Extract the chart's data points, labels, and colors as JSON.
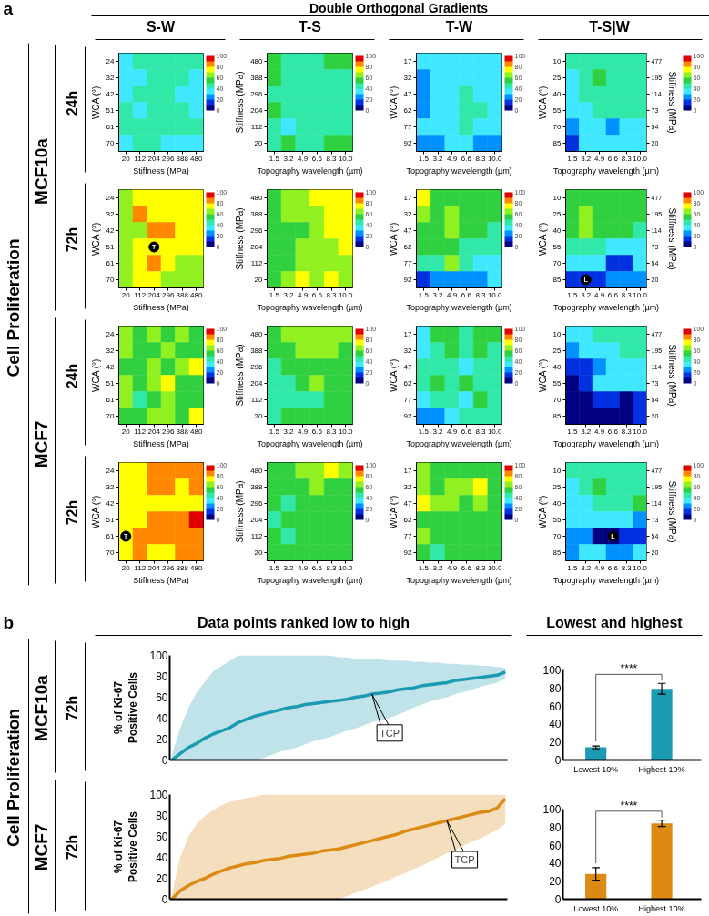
{
  "chart_data": [
    {
      "type": "heatmap",
      "title": "S-W",
      "annotations": [
        "a",
        "Double Orthogonal Gradients",
        "Cell Proliferation",
        "MCF10a",
        "24h"
      ],
      "categories": [
        "20",
        "112",
        "204",
        "296",
        "388",
        "480"
      ],
      "y_categories": [
        "24",
        "32",
        "42",
        "51",
        "61",
        "70"
      ],
      "xlabel": "Stiffness (MPa)",
      "ylabel": "WCA (°)",
      "clim": [
        0,
        100
      ],
      "cticks": [
        0,
        20,
        40,
        60,
        80,
        100
      ],
      "cells": [
        [
          35,
          45,
          45,
          45,
          45,
          45
        ],
        [
          35,
          35,
          45,
          45,
          45,
          35
        ],
        [
          35,
          45,
          45,
          45,
          35,
          35
        ],
        [
          45,
          35,
          45,
          45,
          45,
          35
        ],
        [
          45,
          45,
          45,
          45,
          45,
          45
        ],
        [
          35,
          45,
          45,
          35,
          35,
          35
        ]
      ]
    },
    {
      "type": "heatmap",
      "title": "T-S",
      "categories": [
        "1.5",
        "3.2",
        "4.9",
        "6.6",
        "8.3",
        "10.0"
      ],
      "y_categories": [
        "480",
        "388",
        "296",
        "204",
        "112",
        "20"
      ],
      "xlabel": "Topography wavelength (µm)",
      "ylabel": "Stiffness (MPa)",
      "clim": [
        0,
        100
      ],
      "cticks": [
        0,
        20,
        40,
        60,
        80,
        100
      ],
      "cells": [
        [
          55,
          45,
          45,
          45,
          55,
          55
        ],
        [
          55,
          45,
          45,
          45,
          45,
          45
        ],
        [
          45,
          45,
          45,
          45,
          45,
          45
        ],
        [
          55,
          45,
          45,
          45,
          45,
          45
        ],
        [
          45,
          35,
          45,
          45,
          45,
          45
        ],
        [
          45,
          55,
          45,
          45,
          55,
          55
        ]
      ]
    },
    {
      "type": "heatmap",
      "title": "T-W",
      "categories": [
        "1.5",
        "3.2",
        "4.9",
        "6.6",
        "8.3",
        "10.0"
      ],
      "y_categories": [
        "17",
        "32",
        "47",
        "62",
        "77",
        "92"
      ],
      "xlabel": "Topography wavelength (µm)",
      "ylabel": "WCA (°)",
      "clim": [
        0,
        100
      ],
      "cticks": [
        0,
        20,
        40,
        60,
        80,
        100
      ],
      "cells": [
        [
          35,
          35,
          35,
          35,
          35,
          35
        ],
        [
          25,
          35,
          35,
          35,
          35,
          35
        ],
        [
          25,
          35,
          35,
          45,
          35,
          35
        ],
        [
          25,
          35,
          35,
          45,
          45,
          35
        ],
        [
          35,
          35,
          35,
          45,
          35,
          35
        ],
        [
          25,
          25,
          35,
          35,
          25,
          25
        ]
      ]
    },
    {
      "type": "heatmap",
      "title": "T-S|W",
      "categories": [
        "1.5",
        "3.2",
        "4.9",
        "6.6",
        "8.3",
        "10.0"
      ],
      "y_categories": [
        "10",
        "25",
        "40",
        "55",
        "70",
        "85"
      ],
      "y2_categories": [
        "477",
        "195",
        "114",
        "73",
        "54",
        "20"
      ],
      "xlabel": "Topography wavelength (µm)",
      "ylabel": "WCA (°)",
      "y2label": "Stiffness (MPa)",
      "clim": [
        0,
        100
      ],
      "cticks": [
        0,
        20,
        40,
        60,
        80,
        100
      ],
      "cells": [
        [
          45,
          45,
          45,
          45,
          45,
          45
        ],
        [
          35,
          45,
          55,
          45,
          45,
          45
        ],
        [
          35,
          45,
          45,
          45,
          45,
          45
        ],
        [
          35,
          35,
          45,
          45,
          45,
          45
        ],
        [
          25,
          35,
          35,
          25,
          35,
          35
        ],
        [
          15,
          35,
          35,
          35,
          35,
          35
        ]
      ]
    },
    {
      "type": "heatmap",
      "annotations": [
        "72h",
        {
          "text": "T",
          "x": "204",
          "y": "51"
        }
      ],
      "categories": [
        "20",
        "112",
        "204",
        "296",
        "388",
        "480"
      ],
      "y_categories": [
        "24",
        "32",
        "42",
        "51",
        "61",
        "70"
      ],
      "xlabel": "Stiffness (MPa)",
      "ylabel": "WCA (°)",
      "clim": [
        0,
        100
      ],
      "cticks": [
        0,
        20,
        40,
        60,
        80,
        100
      ],
      "cells": [
        [
          65,
          75,
          75,
          75,
          75,
          75
        ],
        [
          65,
          85,
          75,
          75,
          75,
          75
        ],
        [
          65,
          65,
          85,
          85,
          75,
          75
        ],
        [
          65,
          75,
          75,
          75,
          75,
          75
        ],
        [
          65,
          75,
          85,
          75,
          65,
          65
        ],
        [
          65,
          75,
          75,
          65,
          65,
          65
        ]
      ]
    },
    {
      "type": "heatmap",
      "categories": [
        "1.5",
        "3.2",
        "4.9",
        "6.6",
        "8.3",
        "10.0"
      ],
      "y_categories": [
        "480",
        "388",
        "296",
        "204",
        "112",
        "20"
      ],
      "xlabel": "Topography wavelength (µm)",
      "ylabel": "Stiffness (MPa)",
      "clim": [
        0,
        100
      ],
      "cticks": [
        0,
        20,
        40,
        60,
        80,
        100
      ],
      "cells": [
        [
          55,
          65,
          65,
          75,
          75,
          75
        ],
        [
          55,
          65,
          65,
          65,
          75,
          75
        ],
        [
          55,
          55,
          55,
          65,
          75,
          75
        ],
        [
          55,
          55,
          65,
          65,
          65,
          75
        ],
        [
          55,
          55,
          65,
          65,
          65,
          65
        ],
        [
          55,
          65,
          75,
          65,
          75,
          65
        ]
      ]
    },
    {
      "type": "heatmap",
      "categories": [
        "1.5",
        "3.2",
        "4.9",
        "6.6",
        "8.3",
        "10.0"
      ],
      "y_categories": [
        "17",
        "32",
        "47",
        "62",
        "77",
        "92"
      ],
      "xlabel": "Topography wavelength (µm)",
      "ylabel": "WCA (°)",
      "clim": [
        0,
        100
      ],
      "cticks": [
        0,
        20,
        40,
        60,
        80,
        100
      ],
      "cells": [
        [
          75,
          55,
          55,
          55,
          55,
          55
        ],
        [
          65,
          55,
          65,
          55,
          55,
          55
        ],
        [
          55,
          55,
          65,
          55,
          55,
          45
        ],
        [
          55,
          55,
          55,
          45,
          45,
          45
        ],
        [
          45,
          45,
          65,
          45,
          35,
          35
        ],
        [
          15,
          25,
          25,
          25,
          25,
          35
        ]
      ]
    },
    {
      "type": "heatmap",
      "annotations": [
        {
          "text": "L",
          "x": "3.2",
          "y": "85"
        }
      ],
      "categories": [
        "1.5",
        "3.2",
        "4.9",
        "6.6",
        "8.3",
        "10.0"
      ],
      "y_categories": [
        "10",
        "25",
        "40",
        "55",
        "70",
        "85"
      ],
      "y2_categories": [
        "477",
        "195",
        "114",
        "73",
        "54",
        "20"
      ],
      "xlabel": "Topography wavelength (µm)",
      "ylabel": "WCA (°)",
      "y2label": "Stiffness (MPa)",
      "clim": [
        0,
        100
      ],
      "cticks": [
        0,
        20,
        40,
        60,
        80,
        100
      ],
      "cells": [
        [
          55,
          55,
          55,
          55,
          55,
          55
        ],
        [
          55,
          65,
          55,
          55,
          55,
          55
        ],
        [
          55,
          65,
          55,
          55,
          55,
          45
        ],
        [
          45,
          45,
          45,
          35,
          35,
          35
        ],
        [
          35,
          35,
          35,
          15,
          15,
          35
        ],
        [
          15,
          15,
          15,
          25,
          25,
          25
        ]
      ]
    },
    {
      "type": "heatmap",
      "annotations": [
        "MCF7",
        "24h"
      ],
      "categories": [
        "20",
        "112",
        "204",
        "296",
        "388",
        "480"
      ],
      "y_categories": [
        "24",
        "32",
        "42",
        "51",
        "61",
        "70"
      ],
      "xlabel": "Stiffness (MPa)",
      "ylabel": "WCA (°)",
      "clim": [
        0,
        100
      ],
      "cticks": [
        0,
        20,
        40,
        60,
        80,
        100
      ],
      "cells": [
        [
          65,
          55,
          65,
          55,
          65,
          55
        ],
        [
          65,
          55,
          55,
          65,
          55,
          55
        ],
        [
          55,
          55,
          65,
          55,
          65,
          75
        ],
        [
          65,
          55,
          65,
          75,
          55,
          55
        ],
        [
          65,
          45,
          55,
          65,
          55,
          55
        ],
        [
          55,
          55,
          65,
          65,
          55,
          75
        ]
      ]
    },
    {
      "type": "heatmap",
      "categories": [
        "1.5",
        "3.2",
        "4.9",
        "6.6",
        "8.3",
        "10.0"
      ],
      "y_categories": [
        "480",
        "388",
        "296",
        "204",
        "112",
        "20"
      ],
      "xlabel": "Topography wavelength (µm)",
      "ylabel": "Stiffness (MPa)",
      "clim": [
        0,
        100
      ],
      "cticks": [
        0,
        20,
        40,
        60,
        80,
        100
      ],
      "cells": [
        [
          55,
          65,
          65,
          65,
          65,
          65
        ],
        [
          55,
          55,
          65,
          65,
          65,
          55
        ],
        [
          45,
          55,
          55,
          55,
          55,
          55
        ],
        [
          45,
          45,
          55,
          65,
          55,
          55
        ],
        [
          45,
          45,
          45,
          45,
          55,
          55
        ],
        [
          45,
          55,
          55,
          55,
          55,
          55
        ]
      ]
    },
    {
      "type": "heatmap",
      "categories": [
        "1.5",
        "3.2",
        "4.9",
        "6.6",
        "8.3",
        "10.0"
      ],
      "y_categories": [
        "17",
        "32",
        "47",
        "62",
        "77",
        "92"
      ],
      "xlabel": "Topography wavelength (µm)",
      "ylabel": "WCA (°)",
      "clim": [
        0,
        100
      ],
      "cticks": [
        0,
        20,
        40,
        60,
        80,
        100
      ],
      "cells": [
        [
          35,
          55,
          55,
          45,
          55,
          55
        ],
        [
          35,
          45,
          55,
          45,
          55,
          45
        ],
        [
          45,
          45,
          45,
          35,
          45,
          45
        ],
        [
          45,
          55,
          45,
          55,
          45,
          45
        ],
        [
          35,
          45,
          45,
          35,
          55,
          45
        ],
        [
          25,
          25,
          35,
          45,
          45,
          45
        ]
      ]
    },
    {
      "type": "heatmap",
      "categories": [
        "1.5",
        "3.2",
        "4.9",
        "6.6",
        "8.3",
        "10.0"
      ],
      "y_categories": [
        "10",
        "25",
        "40",
        "55",
        "70",
        "85"
      ],
      "y2_categories": [
        "477",
        "195",
        "114",
        "73",
        "54",
        "20"
      ],
      "xlabel": "Topography wavelength (µm)",
      "ylabel": "WCA (°)",
      "y2label": "Stiffness (MPa)",
      "clim": [
        0,
        100
      ],
      "cticks": [
        0,
        20,
        40,
        60,
        80,
        100
      ],
      "cells": [
        [
          35,
          35,
          45,
          45,
          45,
          45
        ],
        [
          25,
          35,
          35,
          35,
          45,
          45
        ],
        [
          15,
          15,
          25,
          35,
          35,
          35
        ],
        [
          5,
          15,
          35,
          35,
          35,
          35
        ],
        [
          5,
          5,
          15,
          15,
          5,
          15
        ],
        [
          5,
          5,
          5,
          5,
          5,
          15
        ]
      ]
    },
    {
      "type": "heatmap",
      "annotations": [
        "72h",
        {
          "text": "T",
          "x": "20",
          "y": "61"
        }
      ],
      "categories": [
        "20",
        "112",
        "204",
        "296",
        "388",
        "480"
      ],
      "y_categories": [
        "24",
        "32",
        "42",
        "51",
        "61",
        "70"
      ],
      "xlabel": "Stiffness (MPa)",
      "ylabel": "WCA (°)",
      "clim": [
        0,
        100
      ],
      "cticks": [
        0,
        20,
        40,
        60,
        80,
        100
      ],
      "cells": [
        [
          75,
          75,
          85,
          85,
          85,
          85
        ],
        [
          75,
          75,
          85,
          85,
          75,
          85
        ],
        [
          75,
          75,
          75,
          75,
          75,
          75
        ],
        [
          75,
          75,
          85,
          85,
          85,
          95
        ],
        [
          75,
          85,
          85,
          85,
          85,
          85
        ],
        [
          75,
          85,
          75,
          75,
          85,
          85
        ]
      ]
    },
    {
      "type": "heatmap",
      "categories": [
        "1.5",
        "3.2",
        "4.9",
        "6.6",
        "8.3",
        "10.0"
      ],
      "y_categories": [
        "480",
        "388",
        "296",
        "204",
        "112",
        "20"
      ],
      "xlabel": "Topography wavelength (µm)",
      "ylabel": "Stiffness (MPa)",
      "clim": [
        0,
        100
      ],
      "cticks": [
        0,
        20,
        40,
        60,
        80,
        100
      ],
      "cells": [
        [
          55,
          55,
          65,
          65,
          75,
          65
        ],
        [
          55,
          55,
          55,
          65,
          55,
          55
        ],
        [
          55,
          45,
          55,
          55,
          55,
          55
        ],
        [
          45,
          55,
          55,
          55,
          55,
          55
        ],
        [
          55,
          45,
          55,
          55,
          55,
          55
        ],
        [
          55,
          55,
          55,
          55,
          55,
          55
        ]
      ]
    },
    {
      "type": "heatmap",
      "categories": [
        "1.5",
        "3.2",
        "4.9",
        "6.6",
        "8.3",
        "10.0"
      ],
      "y_categories": [
        "17",
        "32",
        "47",
        "62",
        "77",
        "92"
      ],
      "xlabel": "Topography wavelength (µm)",
      "ylabel": "WCA (°)",
      "clim": [
        0,
        100
      ],
      "cticks": [
        0,
        20,
        40,
        60,
        80,
        100
      ],
      "cells": [
        [
          65,
          55,
          55,
          55,
          55,
          55
        ],
        [
          65,
          55,
          65,
          65,
          75,
          55
        ],
        [
          75,
          65,
          65,
          55,
          65,
          55
        ],
        [
          55,
          55,
          55,
          55,
          55,
          55
        ],
        [
          65,
          55,
          55,
          55,
          55,
          55
        ],
        [
          55,
          45,
          55,
          55,
          55,
          55
        ]
      ]
    },
    {
      "type": "heatmap",
      "annotations": [
        {
          "text": "L",
          "x": "6.6",
          "y": "70"
        }
      ],
      "categories": [
        "1.5",
        "3.2",
        "4.9",
        "6.6",
        "8.3",
        "10.0"
      ],
      "y_categories": [
        "10",
        "25",
        "40",
        "55",
        "70",
        "85"
      ],
      "y2_categories": [
        "477",
        "195",
        "114",
        "73",
        "54",
        "20"
      ],
      "xlabel": "Topography wavelength (µm)",
      "ylabel": "WCA (°)",
      "y2label": "Stiffness (MPa)",
      "clim": [
        0,
        100
      ],
      "cticks": [
        0,
        20,
        40,
        60,
        80,
        100
      ],
      "cells": [
        [
          45,
          45,
          45,
          45,
          45,
          45
        ],
        [
          35,
          45,
          55,
          45,
          45,
          45
        ],
        [
          35,
          35,
          45,
          45,
          45,
          55
        ],
        [
          35,
          35,
          35,
          35,
          35,
          25
        ],
        [
          25,
          25,
          5,
          5,
          15,
          15
        ],
        [
          25,
          35,
          35,
          25,
          25,
          35
        ]
      ]
    },
    {
      "type": "line",
      "title": "Data points ranked low to high",
      "annotations": [
        "b",
        "Cell Proliferation",
        "MCF10a",
        "72h",
        "TCP"
      ],
      "categories": [
        null,
        null,
        null,
        null,
        null,
        null,
        null,
        null,
        null,
        null,
        null,
        null,
        null,
        null,
        null,
        null,
        null,
        null,
        null,
        null,
        null,
        null,
        null,
        null,
        null,
        null,
        null,
        null,
        null,
        null,
        null,
        null,
        null,
        null,
        null,
        null,
        null,
        null,
        null,
        null,
        null
      ],
      "ylabel": "% of Ki-67\nPositive Cells",
      "ylim": [
        0,
        100
      ],
      "yticks": [
        0,
        20,
        40,
        60,
        80,
        100
      ],
      "series": [
        {
          "color": "#1b9ab3",
          "values": [
            0,
            6,
            12,
            16,
            21,
            25,
            28,
            31,
            36,
            39,
            42,
            44,
            46,
            48,
            50,
            51,
            53,
            54,
            55,
            56,
            57,
            58,
            60,
            61,
            63,
            64,
            65,
            67,
            68,
            69,
            71,
            72,
            73,
            74,
            76,
            77,
            78,
            79,
            80,
            81,
            84
          ],
          "lower": [
            0,
            0,
            0,
            0,
            0,
            0,
            0,
            0,
            0,
            0,
            0,
            2,
            5,
            8,
            10,
            12,
            15,
            18,
            20,
            22,
            25,
            28,
            30,
            33,
            36,
            38,
            40,
            43,
            46,
            50,
            53,
            56,
            58,
            60,
            63,
            65,
            67,
            70,
            72,
            74,
            78
          ],
          "upper": [
            5,
            30,
            50,
            65,
            75,
            85,
            90,
            95,
            100,
            100,
            100,
            100,
            100,
            100,
            100,
            100,
            100,
            100,
            100,
            100,
            98,
            98,
            97,
            97,
            96,
            96,
            95,
            95,
            95,
            94,
            94,
            93,
            93,
            92,
            92,
            91,
            91,
            90,
            90,
            89,
            88
          ]
        }
      ]
    },
    {
      "type": "bar",
      "title": "Lowest and highest",
      "annotations": [
        "****"
      ],
      "categories": [
        "Lowest 10%",
        "Highest 10%"
      ],
      "values": [
        14,
        79
      ],
      "errors": [
        1.5,
        6
      ],
      "color": "#1b9ab3",
      "ylim": [
        0,
        100
      ],
      "yticks": [
        0,
        20,
        40,
        60,
        80,
        100
      ]
    },
    {
      "type": "line",
      "annotations": [
        "MCF7",
        "72h",
        "TCP"
      ],
      "categories": [
        null,
        null,
        null,
        null,
        null,
        null,
        null,
        null,
        null,
        null,
        null,
        null,
        null,
        null,
        null,
        null,
        null,
        null,
        null,
        null,
        null,
        null,
        null,
        null,
        null,
        null,
        null,
        null,
        null,
        null,
        null,
        null,
        null,
        null,
        null,
        null,
        null,
        null,
        null,
        null,
        null
      ],
      "ylabel": "% of Ki-67\nPositive Cells",
      "ylim": [
        0,
        100
      ],
      "yticks": [
        0,
        20,
        40,
        60,
        80,
        100
      ],
      "series": [
        {
          "color": "#dc8a14",
          "values": [
            0,
            8,
            13,
            17,
            20,
            24,
            27,
            30,
            32,
            34,
            35,
            37,
            38,
            39,
            41,
            42,
            43,
            44,
            46,
            47,
            48,
            50,
            52,
            54,
            56,
            58,
            60,
            62,
            65,
            67,
            69,
            71,
            73,
            75,
            77,
            79,
            81,
            83,
            84,
            87,
            96
          ],
          "lower": [
            0,
            0,
            0,
            0,
            0,
            0,
            0,
            0,
            0,
            0,
            0,
            0,
            0,
            0,
            0,
            0,
            0,
            0,
            0,
            0,
            0,
            3,
            6,
            9,
            12,
            15,
            18,
            22,
            25,
            29,
            32,
            36,
            40,
            44,
            47,
            51,
            55,
            58,
            62,
            66,
            72
          ],
          "upper": [
            5,
            40,
            60,
            72,
            80,
            85,
            90,
            93,
            95,
            97,
            98,
            100,
            100,
            100,
            100,
            100,
            100,
            100,
            100,
            100,
            100,
            100,
            100,
            100,
            100,
            100,
            100,
            100,
            100,
            100,
            100,
            100,
            100,
            100,
            100,
            100,
            100,
            100,
            100,
            100,
            100
          ]
        }
      ]
    },
    {
      "type": "bar",
      "annotations": [
        "****"
      ],
      "categories": [
        "Lowest 10%",
        "Highest 10%"
      ],
      "values": [
        28,
        84
      ],
      "errors": [
        7,
        3.5
      ],
      "color": "#dc8a14",
      "ylim": [
        0,
        100
      ],
      "yticks": [
        0,
        20,
        40,
        60,
        80,
        100
      ]
    }
  ]
}
